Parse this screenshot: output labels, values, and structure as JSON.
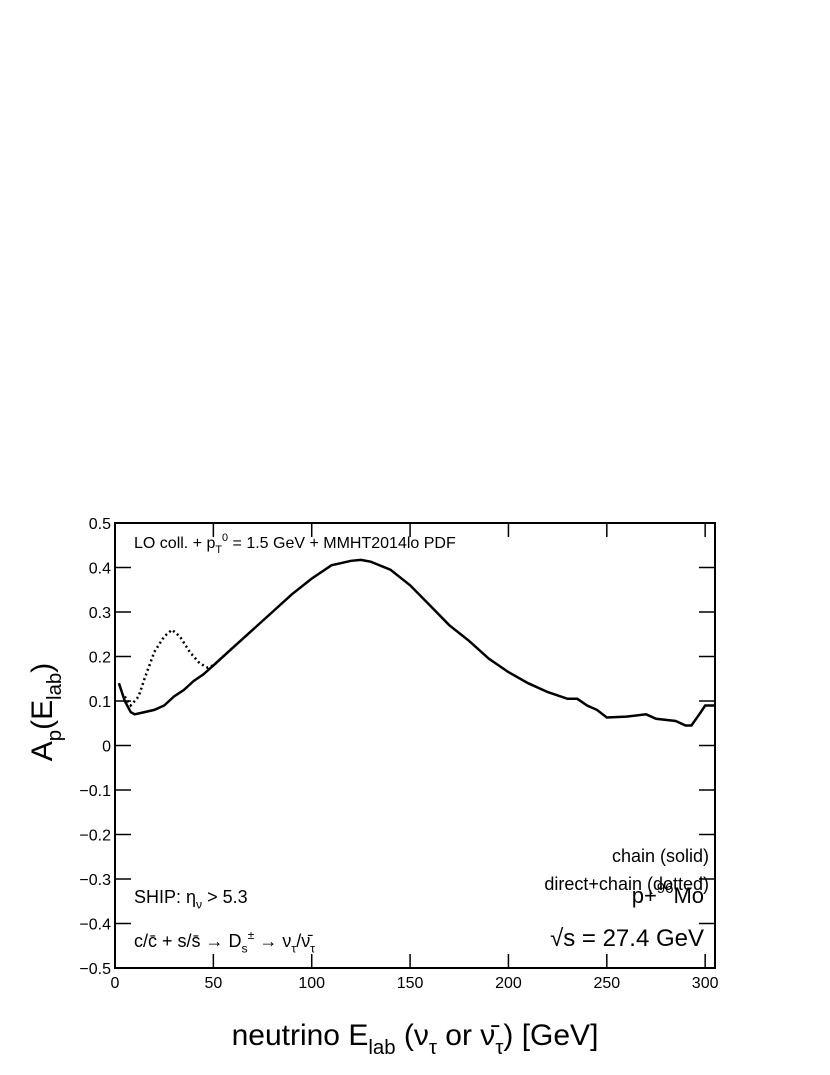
{
  "chart_data": {
    "type": "line",
    "header": [
      {
        "text": "LO coll. + p"
      },
      {
        "text": "T",
        "pos": "sub"
      },
      {
        "text": "0",
        "pos": "sup"
      },
      {
        "text": " = 1.5 GeV + MMHT2014lo PDF"
      }
    ],
    "x_label": [
      {
        "text": "neutrino E"
      },
      {
        "text": "lab",
        "pos": "sub"
      },
      {
        "text": " (ν"
      },
      {
        "text": "τ",
        "pos": "sub"
      },
      {
        "text": " or ν̄"
      },
      {
        "text": "τ",
        "pos": "sub"
      },
      {
        "text": ")    [GeV]"
      }
    ],
    "y_label": [
      {
        "text": "A"
      },
      {
        "text": "p",
        "pos": "sub"
      },
      {
        "text": "(E"
      },
      {
        "text": "lab",
        "pos": "sub"
      },
      {
        "text": ")"
      }
    ],
    "ship_label": [
      {
        "text": "SHIP: η"
      },
      {
        "text": "ν",
        "pos": "sub"
      },
      {
        "text": " > 5.3"
      }
    ],
    "process_label": {
      "color": "#ff0000",
      "parts": [
        {
          "text": "c/c̄ + s/s̄ → D"
        },
        {
          "text": "s",
          "pos": "sub"
        },
        {
          "text": "±",
          "pos": "sup"
        },
        {
          "text": " → ν"
        },
        {
          "text": "τ",
          "pos": "sub"
        },
        {
          "text": "/ν̄"
        },
        {
          "text": "τ",
          "pos": "sub"
        }
      ]
    },
    "system_label": [
      {
        "text": "p+"
      },
      {
        "text": "96",
        "pos": "sup"
      },
      {
        "text": "Mo"
      }
    ],
    "energy_label": "√s = 27.4 GeV",
    "xlim": [
      0,
      305
    ],
    "ylim": [
      -0.5,
      0.5
    ],
    "xticks": [
      0,
      50,
      100,
      150,
      200,
      250,
      300
    ],
    "yticks": [
      {
        "value": -0.5,
        "label": "−0.5"
      },
      {
        "value": -0.4,
        "label": "−0.4"
      },
      {
        "value": -0.3,
        "label": "−0.3"
      },
      {
        "value": -0.2,
        "label": "−0.2"
      },
      {
        "value": -0.1,
        "label": "−0.1"
      },
      0,
      0.1,
      0.2,
      0.3,
      0.4,
      0.5
    ],
    "series": [
      {
        "name": "chain (solid)",
        "color": "#000000",
        "dash": "solid",
        "x": [
          2,
          5,
          8,
          10,
          15,
          20,
          25,
          30,
          35,
          40,
          45,
          50,
          60,
          70,
          80,
          90,
          100,
          110,
          120,
          125,
          130,
          140,
          150,
          160,
          170,
          180,
          190,
          200,
          210,
          220,
          230,
          235,
          240,
          245,
          250,
          260,
          270,
          275,
          285,
          290,
          293,
          297,
          300,
          305
        ],
        "values": [
          0.14,
          0.1,
          0.075,
          0.07,
          0.075,
          0.08,
          0.09,
          0.11,
          0.125,
          0.145,
          0.16,
          0.18,
          0.22,
          0.26,
          0.3,
          0.34,
          0.375,
          0.405,
          0.415,
          0.417,
          0.413,
          0.395,
          0.36,
          0.315,
          0.27,
          0.235,
          0.195,
          0.165,
          0.14,
          0.12,
          0.105,
          0.105,
          0.09,
          0.08,
          0.063,
          0.065,
          0.07,
          0.06,
          0.055,
          0.045,
          0.045,
          0.07,
          0.09,
          0.09
        ]
      },
      {
        "name": "direct+chain (dotted)",
        "color": "#000000",
        "dash": "dotted",
        "x": [
          5,
          8,
          12,
          15,
          20,
          25,
          29,
          33,
          38,
          43,
          47,
          50,
          55,
          60
        ],
        "values": [
          0.11,
          0.09,
          0.11,
          0.15,
          0.21,
          0.245,
          0.26,
          0.245,
          0.21,
          0.185,
          0.175,
          0.18,
          0.2,
          0.22
        ]
      }
    ]
  }
}
